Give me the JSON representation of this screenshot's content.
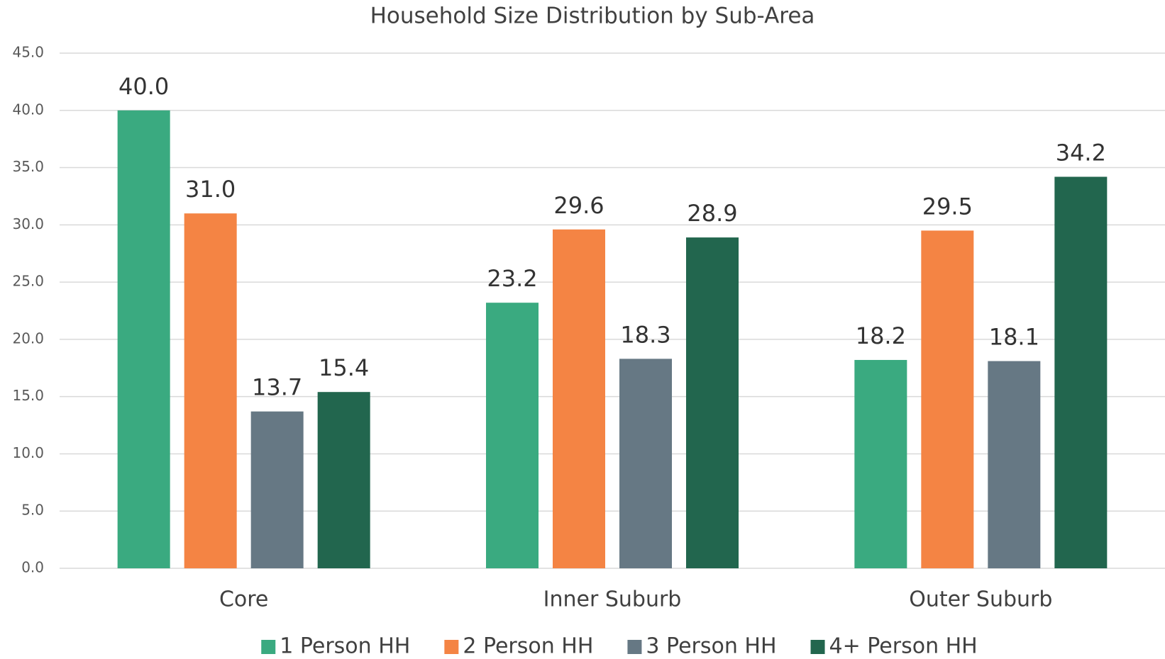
{
  "chart_data": {
    "type": "bar",
    "title": "Household Size Distribution by Sub-Area",
    "categories": [
      "Core",
      "Inner Suburb",
      "Outer Suburb"
    ],
    "series": [
      {
        "name": "1 Person HH",
        "color": "#3aaa80",
        "values": [
          40.0,
          23.2,
          18.2
        ],
        "value_labels": [
          "40.0",
          "23.2",
          "18.2"
        ]
      },
      {
        "name": "2 Person HH",
        "color": "#f48444",
        "values": [
          31.0,
          29.6,
          29.5
        ],
        "value_labels": [
          "31.0",
          "29.6",
          "29.5"
        ]
      },
      {
        "name": "3 Person HH",
        "color": "#667884",
        "values": [
          13.7,
          18.3,
          18.1
        ],
        "value_labels": [
          "13.7",
          "18.3",
          "18.1"
        ]
      },
      {
        "name": "4+ Person HH",
        "color": "#22664e",
        "values": [
          15.4,
          28.9,
          34.2
        ],
        "value_labels": [
          "15.4",
          "28.9",
          "34.2"
        ]
      }
    ],
    "ylim": [
      0,
      45
    ],
    "yticks": [
      {
        "value": 0,
        "label": "0.0"
      },
      {
        "value": 5,
        "label": "5.0"
      },
      {
        "value": 10,
        "label": "10.0"
      },
      {
        "value": 15,
        "label": "15.0"
      },
      {
        "value": 20,
        "label": "20.0"
      },
      {
        "value": 25,
        "label": "25.0"
      },
      {
        "value": 30,
        "label": "30.0"
      },
      {
        "value": 35,
        "label": "35.0"
      },
      {
        "value": 40,
        "label": "40.0"
      },
      {
        "value": 45,
        "label": "45.0"
      }
    ],
    "grid": true,
    "legend": "bottom"
  }
}
